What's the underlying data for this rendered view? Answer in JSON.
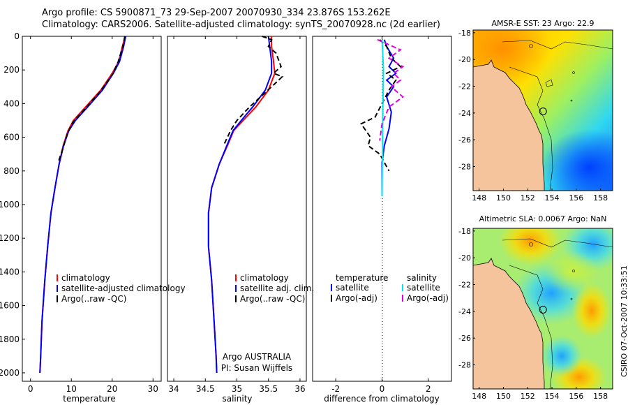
{
  "header": {
    "line1": "Argo profile: CS 5900871_73 29-Sep-2007 20070930_334 23.876S 153.262E",
    "line2": "Climatology: CARS2006. Satellite-adjusted climatology: synTS_20070928.nc (2d earlier)"
  },
  "stamp": "CSIRO 07-Oct-2007 10:33:51",
  "colors": {
    "climatology": "#ff0000",
    "satellite": "#0000ff",
    "argo": "#000000",
    "salinity_satellite": "#00e5ee",
    "salinity_argo": "#e000e0",
    "land": "#f5c49c"
  },
  "chart_data": [
    {
      "type": "line",
      "panel": "temperature",
      "xlabel": "temperature",
      "ylabel": "",
      "xlim": [
        -2,
        32
      ],
      "ylim": [
        2050,
        0
      ],
      "xticks": [
        0,
        10,
        20,
        30
      ],
      "yticks": [
        0,
        200,
        400,
        600,
        800,
        1000,
        1200,
        1400,
        1600,
        1800,
        2000
      ],
      "legend": {
        "placement": "lower-right",
        "entries": [
          "climatology",
          "satellite-adjusted climatology",
          "Argo(..raw -QC)"
        ]
      },
      "series": [
        {
          "name": "climatology",
          "color": "red",
          "style": "solid",
          "x": [
            23.2,
            22.5,
            21.6,
            20.0,
            17.2,
            13.5,
            10.5,
            9.2,
            8.0,
            7.0,
            6.0,
            5.0,
            4.2,
            3.5,
            2.8,
            2.5,
            2.3
          ],
          "y": [
            0,
            60,
            150,
            220,
            320,
            420,
            500,
            560,
            650,
            760,
            900,
            1050,
            1250,
            1450,
            1700,
            1900,
            2000
          ]
        },
        {
          "name": "satellite-adjusted climatology",
          "color": "blue",
          "style": "solid",
          "x": [
            23.3,
            22.8,
            21.8,
            20.3,
            17.6,
            14.0,
            11.0,
            9.4,
            8.1,
            7.0,
            6.0,
            5.0,
            4.2,
            3.5,
            2.8,
            2.5,
            2.3
          ],
          "y": [
            0,
            60,
            150,
            220,
            320,
            420,
            500,
            560,
            650,
            760,
            900,
            1050,
            1250,
            1450,
            1700,
            1900,
            2000
          ]
        },
        {
          "name": "Argo(..raw -QC)",
          "color": "black",
          "style": "dashed",
          "x": [
            23.1,
            22.6,
            21.5,
            20.0,
            17.0,
            13.4,
            10.4,
            9.0,
            7.9,
            6.9
          ],
          "y": [
            0,
            60,
            150,
            230,
            330,
            430,
            510,
            580,
            670,
            740
          ]
        }
      ]
    },
    {
      "type": "line",
      "panel": "salinity",
      "xlabel": "salinity",
      "ylabel": "",
      "xlim": [
        33.9,
        36.1
      ],
      "ylim": [
        2050,
        0
      ],
      "xticks": [
        34,
        34.5,
        35,
        35.5,
        36
      ],
      "yticks": [],
      "legend": {
        "placement": "lower-right",
        "entries": [
          "climatology",
          "satellite adj. clim.",
          "Argo(..raw -QC)"
        ]
      },
      "annotations": [
        "Argo AUSTRALIA",
        "PI: Susan Wijffels"
      ],
      "series": [
        {
          "name": "climatology",
          "color": "red",
          "style": "solid",
          "x": [
            35.55,
            35.55,
            35.58,
            35.6,
            35.5,
            35.3,
            35.1,
            34.95,
            34.85,
            34.72,
            34.6,
            34.55,
            34.55,
            34.6,
            34.64,
            34.67,
            34.68
          ],
          "y": [
            0,
            60,
            150,
            220,
            320,
            420,
            500,
            560,
            650,
            760,
            900,
            1050,
            1250,
            1450,
            1700,
            1900,
            2000
          ]
        },
        {
          "name": "satellite adj. clim.",
          "color": "blue",
          "style": "solid",
          "x": [
            35.5,
            35.52,
            35.55,
            35.55,
            35.45,
            35.25,
            35.07,
            34.94,
            34.84,
            34.72,
            34.6,
            34.55,
            34.55,
            34.6,
            34.64,
            34.67,
            34.68
          ],
          "y": [
            0,
            60,
            150,
            220,
            320,
            420,
            500,
            560,
            650,
            760,
            900,
            1050,
            1250,
            1450,
            1700,
            1900,
            2000
          ]
        },
        {
          "name": "Argo(..raw -QC)",
          "color": "black",
          "style": "dashed",
          "x": [
            35.4,
            35.55,
            35.5,
            35.62,
            35.7,
            35.58,
            35.72,
            35.55,
            35.2,
            35.0,
            34.9,
            34.8
          ],
          "y": [
            0,
            20,
            60,
            100,
            180,
            220,
            240,
            300,
            420,
            500,
            560,
            640
          ]
        }
      ]
    },
    {
      "type": "line",
      "panel": "difference",
      "xlabel": "difference from climatology",
      "ylabel": "",
      "xlim": [
        -3,
        3
      ],
      "ylim": [
        2050,
        0
      ],
      "xticks": [
        -2,
        0,
        2
      ],
      "yticks": [],
      "legend": {
        "placement": "lower-center",
        "entries": [
          "temperature",
          "satellite",
          "Argo(-adj)",
          "salinity",
          "satellite",
          "Argo(-adj)"
        ]
      },
      "series": [
        {
          "name": "temperature satellite",
          "color": "blue",
          "style": "solid",
          "x": [
            0.1,
            0.2,
            0.5,
            0.3,
            0.6,
            0.2,
            0.5,
            0.2,
            0.4,
            0.3,
            0.1,
            0.0,
            0.0,
            0.0
          ],
          "y": [
            20,
            60,
            130,
            180,
            220,
            260,
            300,
            360,
            450,
            550,
            650,
            750,
            850,
            950
          ]
        },
        {
          "name": "temperature Argo(-adj)",
          "color": "black",
          "style": "dashed",
          "x": [
            -0.1,
            0.2,
            0.4,
            0.8,
            0.2,
            0.6,
            0.3,
            -0.3,
            -0.9,
            -0.5,
            -0.6,
            -0.1,
            0.3
          ],
          "y": [
            20,
            60,
            130,
            180,
            220,
            260,
            320,
            480,
            520,
            600,
            650,
            700,
            800
          ]
        },
        {
          "name": "salinity satellite",
          "color": "cyan",
          "style": "solid",
          "x": [
            0.0,
            0.03,
            0.06,
            0.05,
            0.04,
            0.03,
            0.02,
            0.02,
            0.01,
            0.0
          ],
          "y": [
            20,
            100,
            200,
            300,
            400,
            500,
            600,
            700,
            800,
            950
          ]
        },
        {
          "name": "salinity Argo(-adj)",
          "color": "magenta",
          "style": "dashed",
          "x": [
            -0.2,
            0.8,
            0.3,
            0.9,
            0.5,
            0.8,
            0.4,
            0.9,
            0.3,
            0.0,
            -0.1
          ],
          "y": [
            20,
            80,
            130,
            180,
            220,
            260,
            300,
            360,
            420,
            520,
            620
          ]
        }
      ]
    },
    {
      "type": "heatmap",
      "panel": "map-sst",
      "title": "AMSR-E SST: 23 Argo: 22.9",
      "xlim": [
        147.5,
        159
      ],
      "ylim": [
        -29.8,
        -17.8
      ],
      "xticks": [
        148,
        150,
        152,
        154,
        156,
        158
      ],
      "yticks": [
        -18,
        -20,
        -22,
        -24,
        -26,
        -28
      ],
      "float_position": {
        "lon": 153.262,
        "lat": -23.876
      }
    },
    {
      "type": "heatmap",
      "panel": "map-sla",
      "title": "Altimetric SLA: 0.0067 Argo: NaN",
      "xlim": [
        147.5,
        159
      ],
      "ylim": [
        -29.8,
        -17.8
      ],
      "xticks": [
        148,
        150,
        152,
        154,
        156,
        158
      ],
      "yticks": [
        -18,
        -20,
        -22,
        -24,
        -26,
        -28
      ],
      "float_position": {
        "lon": 153.262,
        "lat": -23.876
      }
    }
  ]
}
